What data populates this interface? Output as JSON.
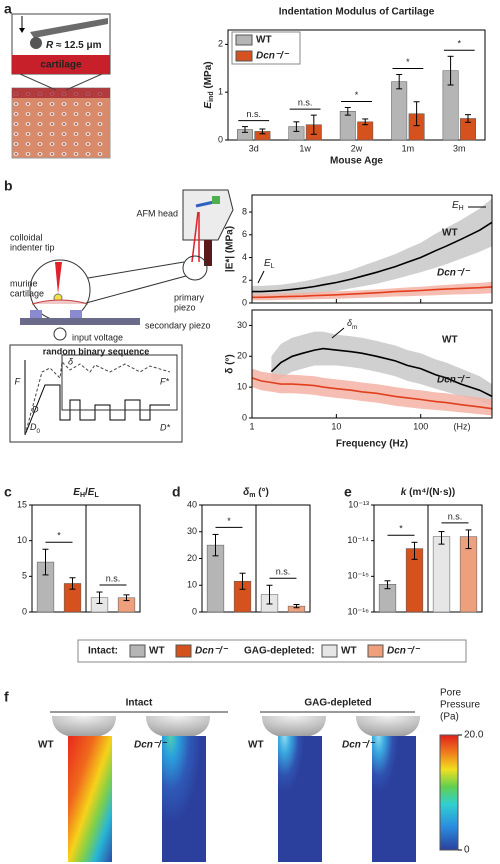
{
  "panel_labels": [
    "a",
    "b",
    "c",
    "d",
    "e",
    "f"
  ],
  "schematic_a": {
    "radius_label": [
      "R",
      " ≈ 12.5 μm"
    ],
    "tissue_label": "cartilage"
  },
  "schematic_b": {
    "afm_head": "AFM head",
    "tip": [
      "colloidal",
      "indenter tip"
    ],
    "cartilage": [
      "murine",
      "cartilage"
    ],
    "primary": [
      "primary",
      "piezo"
    ],
    "secondary": "secondary piezo",
    "voltage": "input voltage",
    "sequence_title": "random binary sequence",
    "force": "F",
    "displacement": "D",
    "offset": [
      "D",
      "0"
    ],
    "delta": "δ",
    "force_amp": "F*",
    "disp_amp": "D*"
  },
  "chart_data": [
    {
      "type": "bar",
      "title": "Indentation Modulus of Cartilage",
      "x_label": "Mouse Age",
      "y_label": [
        "E",
        "ind",
        " (MPa)"
      ],
      "categories": [
        "3d",
        "1w",
        "2w",
        "1m",
        "3m"
      ],
      "series": [
        {
          "name": "WT",
          "color": "#b5b5b5",
          "values": [
            0.22,
            0.28,
            0.6,
            1.22,
            1.45
          ],
          "errors": [
            0.06,
            0.1,
            0.08,
            0.15,
            0.3
          ]
        },
        {
          "name": "Dcn⁻/⁻",
          "color": "#d5521f",
          "values": [
            0.18,
            0.32,
            0.38,
            0.55,
            0.45
          ],
          "errors": [
            0.05,
            0.2,
            0.06,
            0.25,
            0.08
          ]
        }
      ],
      "annotations": [
        "n.s.",
        "n.s.",
        "*",
        "*",
        "*"
      ],
      "ylim": [
        0,
        2.3
      ],
      "yticks": [
        0,
        1,
        2
      ]
    },
    {
      "type": "line",
      "y_label": "|E*| (MPa)",
      "x": [
        1,
        1.3,
        1.7,
        2.2,
        3,
        4,
        5.5,
        7,
        10,
        15,
        20,
        30,
        50,
        70,
        100,
        150,
        200,
        300,
        500,
        700
      ],
      "xlog": true,
      "xlim": [
        1,
        700
      ],
      "xticks": [
        1,
        10,
        100
      ],
      "ylim": [
        0,
        9.5
      ],
      "yticks": [
        0,
        2,
        4,
        6,
        8
      ],
      "series": [
        {
          "name": "WT",
          "color": "#000000",
          "band_color": "#c8c8c8",
          "values": [
            1.0,
            1.0,
            1.05,
            1.1,
            1.2,
            1.3,
            1.45,
            1.6,
            1.8,
            2.1,
            2.35,
            2.7,
            3.2,
            3.6,
            4.0,
            4.6,
            5.0,
            5.6,
            6.4,
            7.1
          ],
          "upper": [
            1.5,
            1.5,
            1.55,
            1.6,
            1.75,
            1.9,
            2.1,
            2.3,
            2.55,
            2.9,
            3.25,
            3.7,
            4.3,
            4.8,
            5.3,
            6.1,
            6.6,
            7.3,
            8.3,
            9.2
          ],
          "lower": [
            0.5,
            0.5,
            0.55,
            0.6,
            0.65,
            0.7,
            0.8,
            0.9,
            1.05,
            1.3,
            1.45,
            1.7,
            2.1,
            2.4,
            2.7,
            3.1,
            3.4,
            3.9,
            4.5,
            5.0
          ]
        },
        {
          "name": "Dcn⁻/⁻",
          "color": "#e0401e",
          "band_color": "#f4b3a4",
          "values": [
            0.5,
            0.5,
            0.52,
            0.55,
            0.58,
            0.6,
            0.65,
            0.68,
            0.72,
            0.78,
            0.83,
            0.9,
            1.0,
            1.05,
            1.1,
            1.18,
            1.22,
            1.28,
            1.35,
            1.42
          ],
          "upper": [
            0.8,
            0.8,
            0.82,
            0.85,
            0.88,
            0.9,
            0.95,
            0.98,
            1.02,
            1.08,
            1.13,
            1.2,
            1.3,
            1.37,
            1.43,
            1.53,
            1.59,
            1.68,
            1.77,
            1.86
          ],
          "lower": [
            0.25,
            0.25,
            0.25,
            0.27,
            0.29,
            0.3,
            0.33,
            0.35,
            0.38,
            0.42,
            0.45,
            0.5,
            0.57,
            0.6,
            0.64,
            0.69,
            0.72,
            0.76,
            0.8,
            0.85
          ]
        }
      ],
      "annotations": {
        "wt": "WT",
        "dcn": "Dcn⁻/⁻",
        "high": [
          "E",
          "H"
        ],
        "low": [
          "E",
          "L"
        ]
      }
    },
    {
      "type": "line",
      "y_label": "δ (°)",
      "x_label": "Frequency (Hz)",
      "x_unit": "(Hz)",
      "x": [
        1,
        1.3,
        1.7,
        2.2,
        3,
        4,
        5.5,
        7,
        10,
        15,
        20,
        30,
        50,
        70,
        100,
        150,
        200,
        300,
        500,
        700
      ],
      "xlog": true,
      "xlim": [
        1,
        700
      ],
      "xticks": [
        1,
        10,
        100
      ],
      "ylim": [
        0,
        35
      ],
      "yticks": [
        0,
        10,
        20,
        30
      ],
      "series": [
        {
          "name": "WT",
          "color": "#000000",
          "band_color": "#c8c8c8",
          "values": [
            null,
            null,
            15,
            18,
            20,
            21,
            22,
            22.5,
            22,
            21.5,
            21,
            20,
            18.5,
            17,
            16,
            14,
            13,
            11,
            9,
            7
          ],
          "upper": [
            null,
            null,
            20,
            24,
            26,
            27,
            28,
            28,
            27,
            26.5,
            26,
            25,
            23.5,
            22,
            21,
            19,
            18,
            16,
            13.5,
            11
          ],
          "lower": [
            null,
            null,
            11,
            13,
            15,
            16,
            17,
            17,
            17,
            16.5,
            16,
            15,
            13.5,
            12,
            11,
            9.5,
            8.5,
            7,
            5.5,
            4
          ]
        },
        {
          "name": "Dcn⁻/⁻",
          "color": "#e0401e",
          "band_color": "#f4b3a4",
          "values": [
            13,
            12,
            11.5,
            11,
            11,
            10.8,
            10.5,
            10,
            9.5,
            9,
            8.5,
            8,
            7,
            6.5,
            6,
            5.3,
            5,
            4.3,
            3.6,
            3
          ],
          "upper": [
            16,
            15,
            14.5,
            14,
            14,
            13.8,
            13.5,
            13,
            12.5,
            12,
            11.5,
            11,
            10,
            9.5,
            9,
            8.3,
            8,
            7.3,
            6.6,
            6
          ],
          "lower": [
            10,
            9,
            8.5,
            8,
            8,
            7.8,
            7.5,
            7,
            6.5,
            6,
            5.5,
            5,
            4,
            3.5,
            3,
            2.6,
            2.3,
            1.8,
            1.2,
            0.8
          ]
        }
      ],
      "annotations": {
        "wt": "WT",
        "dcn": "Dcn⁻/⁻",
        "peak": [
          "δ",
          "m"
        ]
      }
    },
    {
      "type": "bar",
      "title": [
        "E",
        "H",
        "/",
        "E",
        "L"
      ],
      "values": [
        7,
        4,
        2,
        2
      ],
      "errors": [
        1.8,
        0.8,
        0.8,
        0.4
      ],
      "colors": [
        "#b5b5b5",
        "#d5521f",
        "#e6e6e6",
        "#eea07d"
      ],
      "annotations": [
        "*",
        "n.s."
      ],
      "ylim": [
        0,
        15
      ],
      "yticks": [
        0,
        5,
        10,
        15
      ]
    },
    {
      "type": "bar",
      "title": [
        "δ",
        "m",
        " (°)"
      ],
      "values": [
        25,
        11.5,
        6.5,
        2.2
      ],
      "errors": [
        4,
        3,
        3.5,
        0.6
      ],
      "colors": [
        "#b5b5b5",
        "#d5521f",
        "#e6e6e6",
        "#eea07d"
      ],
      "annotations": [
        "*",
        "n.s."
      ],
      "ylim": [
        0,
        40
      ],
      "yticks": [
        0,
        10,
        20,
        30,
        40
      ]
    },
    {
      "type": "bar",
      "title": [
        "k",
        " (m⁴/(N·s))"
      ],
      "values": [
        6e-16,
        6e-15,
        1.3e-14,
        1.3e-14
      ],
      "errors": [
        1.5e-16,
        3e-15,
        5e-15,
        7e-15
      ],
      "colors": [
        "#b5b5b5",
        "#d5521f",
        "#e6e6e6",
        "#eea07d"
      ],
      "annotations": [
        "*",
        "n.s."
      ],
      "ylog": true,
      "ylim": [
        1e-16,
        1e-13
      ],
      "yticks": [
        {
          "value": 1e-16,
          "label": "10⁻¹⁶"
        },
        {
          "value": 1e-15,
          "label": "10⁻¹⁵"
        },
        {
          "value": 1e-14,
          "label": "10⁻¹⁴"
        },
        {
          "value": 1e-13,
          "label": "10⁻¹³"
        }
      ]
    }
  ],
  "shared_legend": [
    {
      "label": "Intact:",
      "items": [
        {
          "name": "WT",
          "color": "#b5b5b5"
        },
        {
          "name": "Dcn⁻/⁻",
          "color": "#d5521f"
        }
      ]
    },
    {
      "label": "GAG-depleted:",
      "items": [
        {
          "name": "WT",
          "color": "#e6e6e6"
        },
        {
          "name": "Dcn⁻/⁻",
          "color": "#eea07d"
        }
      ]
    }
  ],
  "panel_f": {
    "groups": [
      "Intact",
      "GAG-depleted"
    ],
    "labels": [
      "WT",
      "Dcn⁻/⁻",
      "WT",
      "Dcn⁻/⁻"
    ],
    "colorbar": {
      "title": [
        "Pore",
        "Pressure",
        "(Pa)"
      ],
      "ticks": [
        {
          "value": 20,
          "label": "20.0"
        },
        0
      ],
      "lim": [
        0,
        20
      ]
    }
  }
}
